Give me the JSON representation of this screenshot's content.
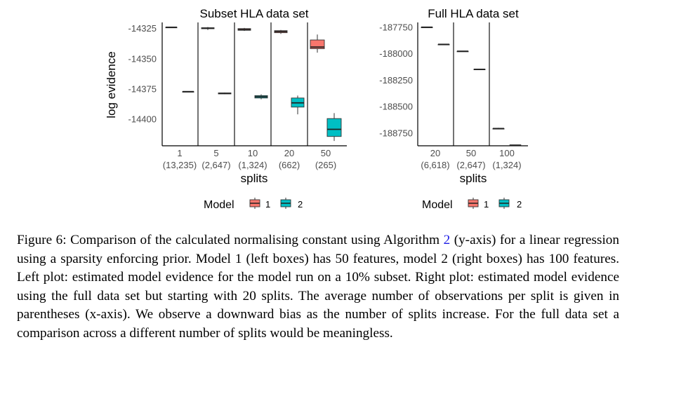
{
  "chart_data": [
    {
      "type": "box",
      "title": "Subset HLA data set",
      "xlabel": "splits",
      "ylabel": "log evidence",
      "categories": [
        {
          "splits": "1",
          "obs": "(13,235)"
        },
        {
          "splits": "5",
          "obs": "(2,647)"
        },
        {
          "splits": "10",
          "obs": "(1,324)"
        },
        {
          "splits": "20",
          "obs": "(662)"
        },
        {
          "splits": "50",
          "obs": "(265)"
        }
      ],
      "yticks": [
        "-14325",
        "-14350",
        "-14375",
        "-14400"
      ],
      "ylim": [
        -14422,
        -14320
      ],
      "series": [
        {
          "name": "1",
          "color": "#F8766D",
          "boxes": [
            {
              "min": -14324,
              "q1": -14324,
              "median": -14324,
              "q3": -14324,
              "max": -14324
            },
            {
              "min": -14326.2,
              "q1": -14325.2,
              "median": -14324.8,
              "q3": -14324.4,
              "max": -14323.8
            },
            {
              "min": -14327,
              "q1": -14326.5,
              "median": -14325.9,
              "q3": -14325.1,
              "max": -14324.6
            },
            {
              "min": -14329.5,
              "q1": -14328.5,
              "median": -14327.6,
              "q3": -14326.8,
              "max": -14326.2
            },
            {
              "min": -14345,
              "q1": -14341.7,
              "median": -14340.4,
              "q3": -14334.5,
              "max": -14330
            }
          ]
        },
        {
          "name": "2",
          "color": "#00BFC4",
          "boxes": [
            {
              "min": -14377.2,
              "q1": -14377.2,
              "median": -14377.2,
              "q3": -14377.2,
              "max": -14377.2
            },
            {
              "min": -14379.4,
              "q1": -14379.1,
              "median": -14378.7,
              "q3": -14378.3,
              "max": -14378
            },
            {
              "min": -14383.5,
              "q1": -14382.5,
              "median": -14381.5,
              "q3": -14380.5,
              "max": -14379.5
            },
            {
              "min": -14396,
              "q1": -14390,
              "median": -14386.5,
              "q3": -14382.5,
              "max": -14380.5
            },
            {
              "min": -14418,
              "q1": -14414.3,
              "median": -14408.4,
              "q3": -14399.5,
              "max": -14395
            }
          ]
        }
      ]
    },
    {
      "type": "box",
      "title": "Full HLA data set",
      "xlabel": "splits",
      "ylabel": "",
      "categories": [
        {
          "splits": "20",
          "obs": "(6,618)"
        },
        {
          "splits": "50",
          "obs": "(2,647)"
        },
        {
          "splits": "100",
          "obs": "(1,324)"
        }
      ],
      "yticks": [
        "-187750",
        "-188000",
        "-188250",
        "-188500",
        "-188750"
      ],
      "ylim": [
        -188870,
        -187705
      ],
      "series": [
        {
          "name": "1",
          "color": "#F8766D",
          "boxes": [
            {
              "min": -187752,
              "q1": -187750,
              "median": -187750,
              "q3": -187750,
              "max": -187746
            },
            {
              "min": -187978,
              "q1": -187977,
              "median": -187977,
              "q3": -187977,
              "max": -187976
            },
            {
              "min": -188712,
              "q1": -188707,
              "median": -188707,
              "q3": -188707,
              "max": -188700
            }
          ]
        },
        {
          "name": "2",
          "color": "#00BFC4",
          "boxes": [
            {
              "min": -187912,
              "q1": -187912,
              "median": -187912,
              "q3": -187912,
              "max": -187912
            },
            {
              "min": -188151,
              "q1": -188149,
              "median": -188148,
              "q3": -188147,
              "max": -188145
            },
            {
              "min": -188866,
              "q1": -188865,
              "median": -188864,
              "q3": -188863,
              "max": -188861
            }
          ]
        }
      ]
    }
  ],
  "legend": {
    "title": "Model",
    "items": [
      "1",
      "2"
    ]
  },
  "caption": {
    "label": "Figure 6:",
    "before_ref": "Comparison of the calculated normalising constant using Algorithm",
    "ref": "2",
    "after_ref": "(y-axis) for a linear regression using a sparsity enforcing prior. Model 1 (left boxes) has 50 features, model 2 (right boxes) has 100 features. Left plot: estimated model evidence for the model run on a 10% subset. Right plot: estimated model evidence using the full data set but starting with 20 splits. The average number of observations per split is given in parentheses (x-axis). We observe a downward bias as the number of splits increase. For the full data set a comparison across a different number of splits would be meaningless."
  }
}
